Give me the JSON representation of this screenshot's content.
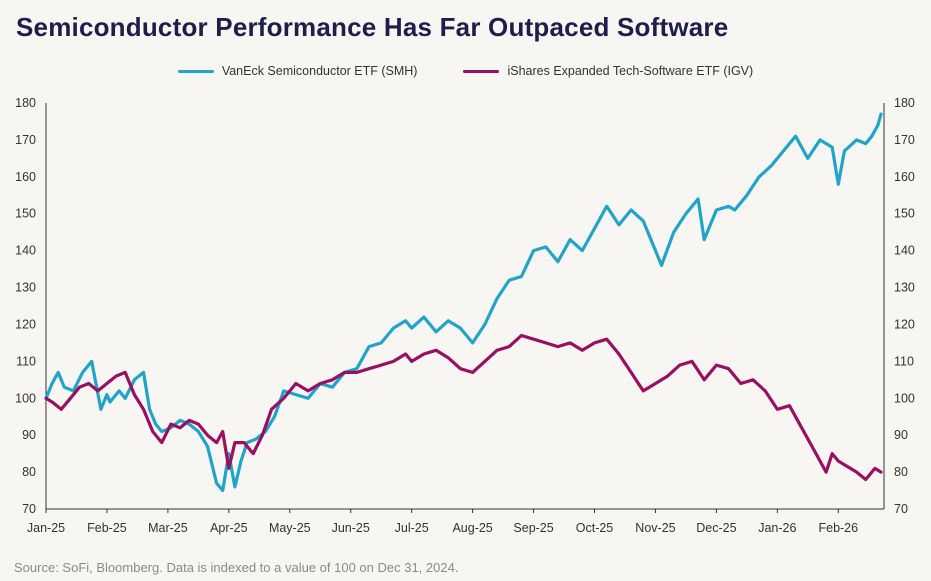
{
  "title": "Semiconductor Performance Has Far Outpaced Software",
  "source": "Source: SoFi, Bloomberg. Data is indexed to a value of 100 on Dec 31, 2024.",
  "colors": {
    "smh": "#22a3c8",
    "igv": "#9a0f62",
    "axis": "#333333",
    "background": "#f7f6f3"
  },
  "chart_data": {
    "type": "line",
    "title": "Semiconductor Performance Has Far Outpaced Software",
    "xlabel": "",
    "ylabel": "",
    "ylim": [
      70,
      180
    ],
    "yticks": [
      70,
      80,
      90,
      100,
      110,
      120,
      130,
      140,
      150,
      160,
      170,
      180
    ],
    "x_tick_labels": [
      "Jan-25",
      "Feb-25",
      "Mar-25",
      "Apr-25",
      "May-25",
      "Jun-25",
      "Jul-25",
      "Aug-25",
      "Sep-25",
      "Oct-25",
      "Nov-25",
      "Dec-25",
      "Jan-26",
      "Feb-26"
    ],
    "x_domain_months": [
      0,
      13.75
    ],
    "legend_position": "top-center",
    "grid": false,
    "series": [
      {
        "name": "VanEck Semiconductor ETF (SMH)",
        "color": "#22a3c8",
        "x": [
          0,
          0.1,
          0.2,
          0.3,
          0.45,
          0.6,
          0.75,
          0.9,
          1.0,
          1.05,
          1.2,
          1.3,
          1.45,
          1.6,
          1.7,
          1.8,
          1.9,
          2.05,
          2.2,
          2.35,
          2.5,
          2.65,
          2.8,
          2.9,
          3.0,
          3.1,
          3.2,
          3.3,
          3.45,
          3.6,
          3.75,
          3.9,
          4.1,
          4.3,
          4.5,
          4.7,
          4.9,
          5.1,
          5.3,
          5.5,
          5.7,
          5.9,
          6.0,
          6.2,
          6.4,
          6.6,
          6.8,
          7.0,
          7.2,
          7.4,
          7.6,
          7.8,
          8.0,
          8.2,
          8.4,
          8.6,
          8.8,
          9.0,
          9.2,
          9.4,
          9.6,
          9.8,
          10.0,
          10.1,
          10.3,
          10.5,
          10.7,
          10.8,
          11.0,
          11.2,
          11.3,
          11.5,
          11.7,
          11.9,
          12.1,
          12.3,
          12.5,
          12.7,
          12.9,
          13.0,
          13.1,
          13.3,
          13.45,
          13.55,
          13.65,
          13.7
        ],
        "values": [
          100,
          104,
          107,
          103,
          102,
          107,
          110,
          97,
          101,
          99,
          102,
          100,
          105,
          107,
          97,
          93,
          91,
          92,
          94,
          93,
          91,
          87,
          77,
          75,
          85,
          76,
          83,
          88,
          89,
          91,
          95,
          102,
          101,
          100,
          104,
          103,
          107,
          108,
          114,
          115,
          119,
          121,
          119,
          122,
          118,
          121,
          119,
          115,
          120,
          127,
          132,
          133,
          140,
          141,
          137,
          143,
          140,
          146,
          152,
          147,
          151,
          148,
          140,
          136,
          145,
          150,
          154,
          143,
          151,
          152,
          151,
          155,
          160,
          163,
          167,
          171,
          165,
          170,
          168,
          158,
          167,
          170,
          169,
          171,
          174,
          177
        ]
      },
      {
        "name": "iShares Expanded Tech-Software ETF (IGV)",
        "color": "#9a0f62",
        "x": [
          0,
          0.1,
          0.25,
          0.4,
          0.55,
          0.7,
          0.85,
          1.0,
          1.15,
          1.3,
          1.45,
          1.6,
          1.75,
          1.9,
          2.05,
          2.2,
          2.35,
          2.5,
          2.65,
          2.8,
          2.9,
          3.0,
          3.1,
          3.25,
          3.4,
          3.55,
          3.7,
          3.9,
          4.1,
          4.3,
          4.5,
          4.7,
          4.9,
          5.1,
          5.3,
          5.5,
          5.7,
          5.9,
          6.0,
          6.2,
          6.4,
          6.6,
          6.8,
          7.0,
          7.2,
          7.4,
          7.6,
          7.8,
          8.0,
          8.2,
          8.4,
          8.6,
          8.8,
          9.0,
          9.2,
          9.4,
          9.6,
          9.8,
          10.0,
          10.2,
          10.4,
          10.6,
          10.8,
          11.0,
          11.2,
          11.4,
          11.6,
          11.8,
          12.0,
          12.2,
          12.4,
          12.6,
          12.8,
          12.9,
          13.0,
          13.1,
          13.2,
          13.3,
          13.45,
          13.6,
          13.7
        ],
        "values": [
          100,
          99,
          97,
          100,
          103,
          104,
          102,
          104,
          106,
          107,
          101,
          97,
          91,
          88,
          93,
          92,
          94,
          93,
          90,
          88,
          91,
          81,
          88,
          88,
          85,
          90,
          97,
          100,
          104,
          102,
          104,
          105,
          107,
          107,
          108,
          109,
          110,
          112,
          110,
          112,
          113,
          111,
          108,
          107,
          110,
          113,
          114,
          117,
          116,
          115,
          114,
          115,
          113,
          115,
          116,
          112,
          107,
          102,
          104,
          106,
          109,
          110,
          105,
          109,
          108,
          104,
          105,
          102,
          97,
          98,
          92,
          86,
          80,
          85,
          83,
          82,
          81,
          80,
          78,
          81,
          80
        ]
      }
    ]
  }
}
